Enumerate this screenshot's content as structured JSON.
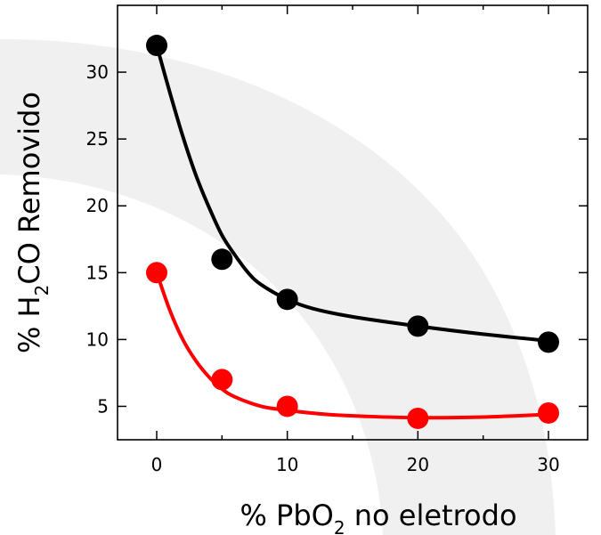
{
  "chart_data": {
    "type": "line",
    "xlabel": {
      "prefix": "% PbO",
      "subscript": "2",
      "suffix": " no eletrodo"
    },
    "ylabel": {
      "prefix": "% H",
      "subscript": "2",
      "suffix": "CO Removido"
    },
    "xlim": [
      -3,
      33
    ],
    "ylim": [
      2.5,
      35
    ],
    "xticks": [
      0,
      10,
      20,
      30
    ],
    "yticks": [
      5,
      10,
      15,
      20,
      25,
      30
    ],
    "x_minor_ticks": [
      5,
      15,
      25
    ],
    "grid": false,
    "series": [
      {
        "color": "#000000",
        "points": [
          [
            0,
            32
          ],
          [
            5,
            16
          ],
          [
            10,
            13
          ],
          [
            20,
            11
          ],
          [
            30,
            9.8
          ]
        ],
        "fit": [
          [
            0,
            32
          ],
          [
            1,
            28.5
          ],
          [
            2,
            25.2
          ],
          [
            3,
            22.3
          ],
          [
            4,
            19.9
          ],
          [
            5,
            17.8
          ],
          [
            6,
            16.3
          ],
          [
            7,
            15.0
          ],
          [
            8,
            14.1
          ],
          [
            10,
            13.0
          ],
          [
            12,
            12.3
          ],
          [
            15,
            11.7
          ],
          [
            20,
            11.0
          ],
          [
            25,
            10.4
          ],
          [
            30,
            9.9
          ]
        ]
      },
      {
        "color": "#ff0000",
        "points": [
          [
            0,
            15
          ],
          [
            5,
            7
          ],
          [
            10,
            5
          ],
          [
            20,
            4.1
          ],
          [
            30,
            4.5
          ]
        ],
        "fit": [
          [
            0,
            15
          ],
          [
            1,
            12.2
          ],
          [
            2,
            10.0
          ],
          [
            3,
            8.4
          ],
          [
            4,
            7.2
          ],
          [
            5,
            6.3
          ],
          [
            6,
            5.7
          ],
          [
            8,
            5.0
          ],
          [
            10,
            4.7
          ],
          [
            13,
            4.4
          ],
          [
            16,
            4.25
          ],
          [
            20,
            4.15
          ],
          [
            25,
            4.2
          ],
          [
            30,
            4.4
          ]
        ]
      }
    ]
  }
}
